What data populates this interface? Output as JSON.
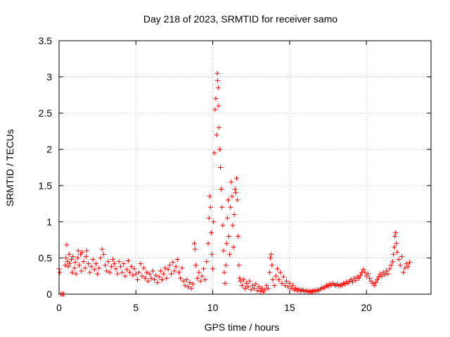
{
  "chart_data": {
    "type": "scatter",
    "title": "Day 218 of 2023, SRMTID for receiver samo",
    "xlabel": "GPS time / hours",
    "ylabel": "SRMTID / TECUs",
    "xlim": [
      0,
      24.2
    ],
    "ylim": [
      0,
      3.5
    ],
    "xticks": [
      0,
      5,
      10,
      15,
      20
    ],
    "yticks": [
      0,
      0.5,
      1,
      1.5,
      2,
      2.5,
      3,
      3.5
    ],
    "xtick_labels": [
      "0",
      "5",
      "10",
      "15",
      "20"
    ],
    "ytick_labels": [
      "0",
      "0.5",
      "1",
      "1.5",
      "2",
      "2.5",
      "3",
      "3.5"
    ],
    "grid": true,
    "marker": "+",
    "color": "#ff0000",
    "series": [
      {
        "name": "samo",
        "points": [
          [
            0.0,
            0.35
          ],
          [
            0.05,
            0.3
          ],
          [
            0.1,
            0.0
          ],
          [
            0.2,
            0.0
          ],
          [
            0.3,
            0.0
          ],
          [
            0.4,
            0.4
          ],
          [
            0.45,
            0.5
          ],
          [
            0.5,
            0.68
          ],
          [
            0.55,
            0.45
          ],
          [
            0.6,
            0.38
          ],
          [
            0.65,
            0.55
          ],
          [
            0.7,
            0.42
          ],
          [
            0.8,
            0.48
          ],
          [
            0.85,
            0.3
          ],
          [
            0.9,
            0.52
          ],
          [
            1.0,
            0.36
          ],
          [
            1.05,
            0.44
          ],
          [
            1.1,
            0.28
          ],
          [
            1.2,
            0.5
          ],
          [
            1.25,
            0.6
          ],
          [
            1.3,
            0.4
          ],
          [
            1.4,
            0.55
          ],
          [
            1.45,
            0.32
          ],
          [
            1.5,
            0.58
          ],
          [
            1.6,
            0.45
          ],
          [
            1.7,
            0.36
          ],
          [
            1.75,
            0.52
          ],
          [
            1.8,
            0.6
          ],
          [
            1.9,
            0.42
          ],
          [
            2.0,
            0.3
          ],
          [
            2.1,
            0.38
          ],
          [
            2.2,
            0.48
          ],
          [
            2.3,
            0.34
          ],
          [
            2.4,
            0.42
          ],
          [
            2.5,
            0.28
          ],
          [
            2.6,
            0.36
          ],
          [
            2.7,
            0.5
          ],
          [
            2.8,
            0.62
          ],
          [
            2.9,
            0.55
          ],
          [
            3.0,
            0.4
          ],
          [
            3.1,
            0.32
          ],
          [
            3.2,
            0.45
          ],
          [
            3.3,
            0.3
          ],
          [
            3.4,
            0.38
          ],
          [
            3.5,
            0.48
          ],
          [
            3.6,
            0.42
          ],
          [
            3.7,
            0.35
          ],
          [
            3.8,
            0.28
          ],
          [
            3.9,
            0.45
          ],
          [
            4.0,
            0.38
          ],
          [
            4.1,
            0.3
          ],
          [
            4.2,
            0.42
          ],
          [
            4.3,
            0.25
          ],
          [
            4.4,
            0.34
          ],
          [
            4.5,
            0.46
          ],
          [
            4.6,
            0.3
          ],
          [
            4.7,
            0.38
          ],
          [
            4.8,
            0.26
          ],
          [
            4.9,
            0.35
          ],
          [
            5.0,
            0.28
          ],
          [
            5.1,
            0.2
          ],
          [
            5.2,
            0.3
          ],
          [
            5.3,
            0.42
          ],
          [
            5.4,
            0.25
          ],
          [
            5.5,
            0.36
          ],
          [
            5.6,
            0.22
          ],
          [
            5.7,
            0.3
          ],
          [
            5.8,
            0.18
          ],
          [
            5.9,
            0.28
          ],
          [
            6.0,
            0.22
          ],
          [
            6.1,
            0.32
          ],
          [
            6.2,
            0.2
          ],
          [
            6.3,
            0.26
          ],
          [
            6.4,
            0.16
          ],
          [
            6.5,
            0.24
          ],
          [
            6.6,
            0.32
          ],
          [
            6.7,
            0.2
          ],
          [
            6.8,
            0.28
          ],
          [
            6.9,
            0.36
          ],
          [
            7.0,
            0.22
          ],
          [
            7.1,
            0.34
          ],
          [
            7.2,
            0.4
          ],
          [
            7.3,
            0.28
          ],
          [
            7.4,
            0.44
          ],
          [
            7.5,
            0.32
          ],
          [
            7.6,
            0.38
          ],
          [
            7.7,
            0.48
          ],
          [
            7.8,
            0.3
          ],
          [
            7.9,
            0.22
          ],
          [
            8.0,
            0.36
          ],
          [
            8.1,
            0.18
          ],
          [
            8.2,
            0.12
          ],
          [
            8.3,
            0.2
          ],
          [
            8.4,
            0.1
          ],
          [
            8.5,
            0.16
          ],
          [
            8.6,
            0.08
          ],
          [
            8.7,
            0.14
          ],
          [
            8.8,
            0.7
          ],
          [
            8.85,
            0.62
          ],
          [
            8.9,
            0.4
          ],
          [
            9.0,
            0.22
          ],
          [
            9.1,
            0.3
          ],
          [
            9.2,
            0.18
          ],
          [
            9.3,
            0.25
          ],
          [
            9.4,
            0.35
          ],
          [
            9.5,
            0.2
          ],
          [
            9.6,
            0.45
          ],
          [
            9.7,
            0.7
          ],
          [
            9.75,
            1.05
          ],
          [
            9.8,
            1.35
          ],
          [
            9.85,
            1.2
          ],
          [
            9.9,
            0.85
          ],
          [
            9.95,
            0.55
          ],
          [
            10.0,
            0.35
          ],
          [
            10.05,
            1.0
          ],
          [
            10.1,
            1.95
          ],
          [
            10.15,
            2.55
          ],
          [
            10.2,
            2.7
          ],
          [
            10.25,
            2.2
          ],
          [
            10.3,
            3.05
          ],
          [
            10.32,
            2.95
          ],
          [
            10.35,
            2.85
          ],
          [
            10.38,
            2.6
          ],
          [
            10.4,
            2.3
          ],
          [
            10.45,
            2.0
          ],
          [
            10.5,
            1.75
          ],
          [
            10.55,
            1.45
          ],
          [
            10.6,
            1.2
          ],
          [
            10.65,
            0.95
          ],
          [
            10.7,
            0.6
          ],
          [
            10.75,
            0.3
          ],
          [
            10.8,
            0.15
          ],
          [
            10.85,
            0.4
          ],
          [
            10.9,
            0.7
          ],
          [
            10.95,
            1.05
          ],
          [
            11.0,
            1.3
          ],
          [
            11.05,
            0.8
          ],
          [
            11.1,
            0.55
          ],
          [
            11.15,
            1.2
          ],
          [
            11.2,
            1.55
          ],
          [
            11.25,
            1.35
          ],
          [
            11.3,
            0.95
          ],
          [
            11.35,
            0.65
          ],
          [
            11.4,
            1.1
          ],
          [
            11.45,
            1.45
          ],
          [
            11.5,
            1.4
          ],
          [
            11.55,
            1.6
          ],
          [
            11.6,
            1.3
          ],
          [
            11.65,
            0.8
          ],
          [
            11.7,
            0.4
          ],
          [
            11.75,
            0.22
          ],
          [
            11.8,
            0.18
          ],
          [
            11.9,
            0.12
          ],
          [
            12.0,
            0.2
          ],
          [
            12.1,
            0.08
          ],
          [
            12.2,
            0.15
          ],
          [
            12.3,
            0.1
          ],
          [
            12.4,
            0.18
          ],
          [
            12.5,
            0.06
          ],
          [
            12.6,
            0.12
          ],
          [
            12.7,
            0.08
          ],
          [
            12.8,
            0.14
          ],
          [
            12.9,
            0.05
          ],
          [
            13.0,
            0.1
          ],
          [
            13.1,
            0.04
          ],
          [
            13.2,
            0.08
          ],
          [
            13.3,
            0.03
          ],
          [
            13.4,
            0.06
          ],
          [
            13.5,
            0.12
          ],
          [
            13.6,
            0.08
          ],
          [
            13.7,
            0.3
          ],
          [
            13.75,
            0.5
          ],
          [
            13.8,
            0.55
          ],
          [
            13.85,
            0.4
          ],
          [
            13.9,
            0.2
          ],
          [
            14.0,
            0.12
          ],
          [
            14.1,
            0.25
          ],
          [
            14.2,
            0.35
          ],
          [
            14.3,
            0.2
          ],
          [
            14.4,
            0.3
          ],
          [
            14.5,
            0.15
          ],
          [
            14.6,
            0.24
          ],
          [
            14.7,
            0.12
          ],
          [
            14.8,
            0.18
          ],
          [
            14.9,
            0.1
          ],
          [
            15.0,
            0.15
          ],
          [
            15.1,
            0.08
          ],
          [
            15.2,
            0.12
          ],
          [
            15.3,
            0.06
          ],
          [
            15.4,
            0.08
          ],
          [
            15.5,
            0.05
          ],
          [
            15.6,
            0.07
          ],
          [
            15.7,
            0.04
          ],
          [
            15.8,
            0.06
          ],
          [
            15.9,
            0.05
          ],
          [
            16.0,
            0.04
          ],
          [
            16.1,
            0.05
          ],
          [
            16.2,
            0.03
          ],
          [
            16.3,
            0.04
          ],
          [
            16.4,
            0.03
          ],
          [
            16.5,
            0.04
          ],
          [
            16.6,
            0.05
          ],
          [
            16.7,
            0.04
          ],
          [
            16.8,
            0.06
          ],
          [
            16.9,
            0.05
          ],
          [
            17.0,
            0.07
          ],
          [
            17.1,
            0.09
          ],
          [
            17.2,
            0.08
          ],
          [
            17.3,
            0.1
          ],
          [
            17.4,
            0.12
          ],
          [
            17.5,
            0.11
          ],
          [
            17.6,
            0.14
          ],
          [
            17.7,
            0.12
          ],
          [
            17.8,
            0.15
          ],
          [
            17.9,
            0.13
          ],
          [
            18.0,
            0.12
          ],
          [
            18.1,
            0.14
          ],
          [
            18.2,
            0.11
          ],
          [
            18.3,
            0.13
          ],
          [
            18.4,
            0.12
          ],
          [
            18.5,
            0.15
          ],
          [
            18.6,
            0.14
          ],
          [
            18.7,
            0.17
          ],
          [
            18.8,
            0.15
          ],
          [
            18.9,
            0.18
          ],
          [
            19.0,
            0.2
          ],
          [
            19.1,
            0.17
          ],
          [
            19.2,
            0.22
          ],
          [
            19.3,
            0.19
          ],
          [
            19.4,
            0.24
          ],
          [
            19.5,
            0.22
          ],
          [
            19.6,
            0.26
          ],
          [
            19.7,
            0.3
          ],
          [
            19.8,
            0.34
          ],
          [
            19.9,
            0.3
          ],
          [
            20.0,
            0.25
          ],
          [
            20.1,
            0.28
          ],
          [
            20.2,
            0.22
          ],
          [
            20.3,
            0.18
          ],
          [
            20.4,
            0.15
          ],
          [
            20.5,
            0.12
          ],
          [
            20.6,
            0.16
          ],
          [
            20.7,
            0.2
          ],
          [
            20.8,
            0.24
          ],
          [
            20.9,
            0.28
          ],
          [
            21.0,
            0.25
          ],
          [
            21.1,
            0.3
          ],
          [
            21.2,
            0.27
          ],
          [
            21.3,
            0.32
          ],
          [
            21.4,
            0.28
          ],
          [
            21.5,
            0.35
          ],
          [
            21.6,
            0.4
          ],
          [
            21.7,
            0.45
          ],
          [
            21.75,
            0.55
          ],
          [
            21.8,
            0.65
          ],
          [
            21.85,
            0.8
          ],
          [
            21.9,
            0.85
          ],
          [
            21.95,
            0.7
          ],
          [
            22.0,
            0.58
          ],
          [
            22.1,
            0.48
          ],
          [
            22.2,
            0.4
          ],
          [
            22.3,
            0.52
          ],
          [
            22.4,
            0.3
          ],
          [
            22.5,
            0.36
          ],
          [
            22.6,
            0.42
          ],
          [
            22.7,
            0.38
          ],
          [
            22.8,
            0.44
          ]
        ]
      }
    ]
  }
}
